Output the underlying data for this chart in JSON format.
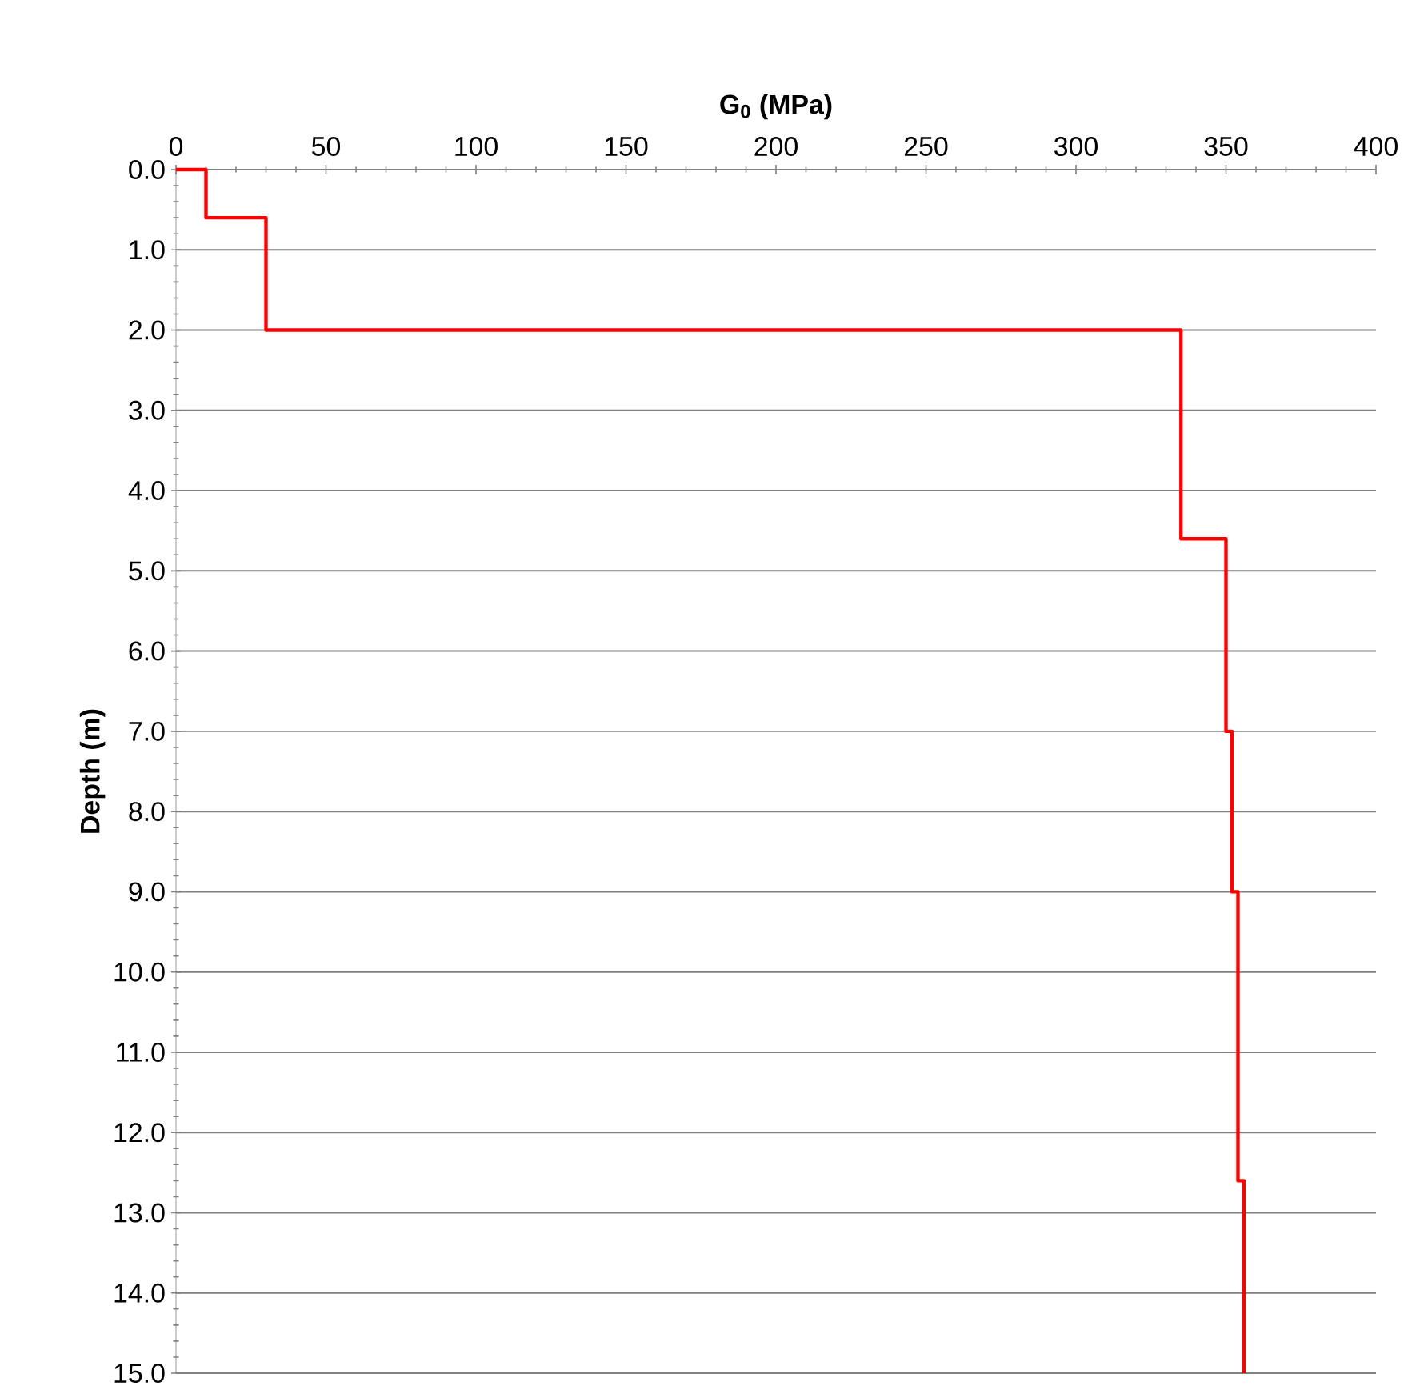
{
  "chart_data": {
    "type": "line",
    "xlabel": "G$_{0}$ (MPa)",
    "ylabel": "Depth (m)",
    "x": [
      0,
      10,
      10,
      30,
      30,
      335,
      335,
      350,
      350,
      352,
      352,
      354,
      354,
      356,
      356
    ],
    "series": [
      {
        "color": "#ff0000",
        "values": [
          0,
          0,
          0.6,
          0.6,
          2,
          2,
          4.6,
          4.6,
          7,
          7,
          9,
          9,
          12.6,
          12.6,
          15
        ]
      }
    ],
    "xlim": [
      0,
      400
    ],
    "xticks": [
      0,
      50,
      100,
      150,
      200,
      250,
      300,
      350,
      400
    ],
    "ylim": [
      15,
      0
    ],
    "yticks": [
      {
        "value": 0,
        "label": "0.0"
      },
      {
        "value": 1,
        "label": "1.0"
      },
      {
        "value": 2,
        "label": "2.0"
      },
      {
        "value": 3,
        "label": "3.0"
      },
      {
        "value": 4,
        "label": "4.0"
      },
      {
        "value": 5,
        "label": "5.0"
      },
      {
        "value": 6,
        "label": "6.0"
      },
      {
        "value": 7,
        "label": "7.0"
      },
      {
        "value": 8,
        "label": "8.0"
      },
      {
        "value": 9,
        "label": "9.0"
      },
      {
        "value": 10,
        "label": "10.0"
      },
      {
        "value": 11,
        "label": "11.0"
      },
      {
        "value": 12,
        "label": "12.0"
      },
      {
        "value": 13,
        "label": "13.0"
      },
      {
        "value": 14,
        "label": "14.0"
      },
      {
        "value": 15,
        "label": "15.0"
      }
    ],
    "grid": "y",
    "marker": "none",
    "line_style": "solid"
  }
}
